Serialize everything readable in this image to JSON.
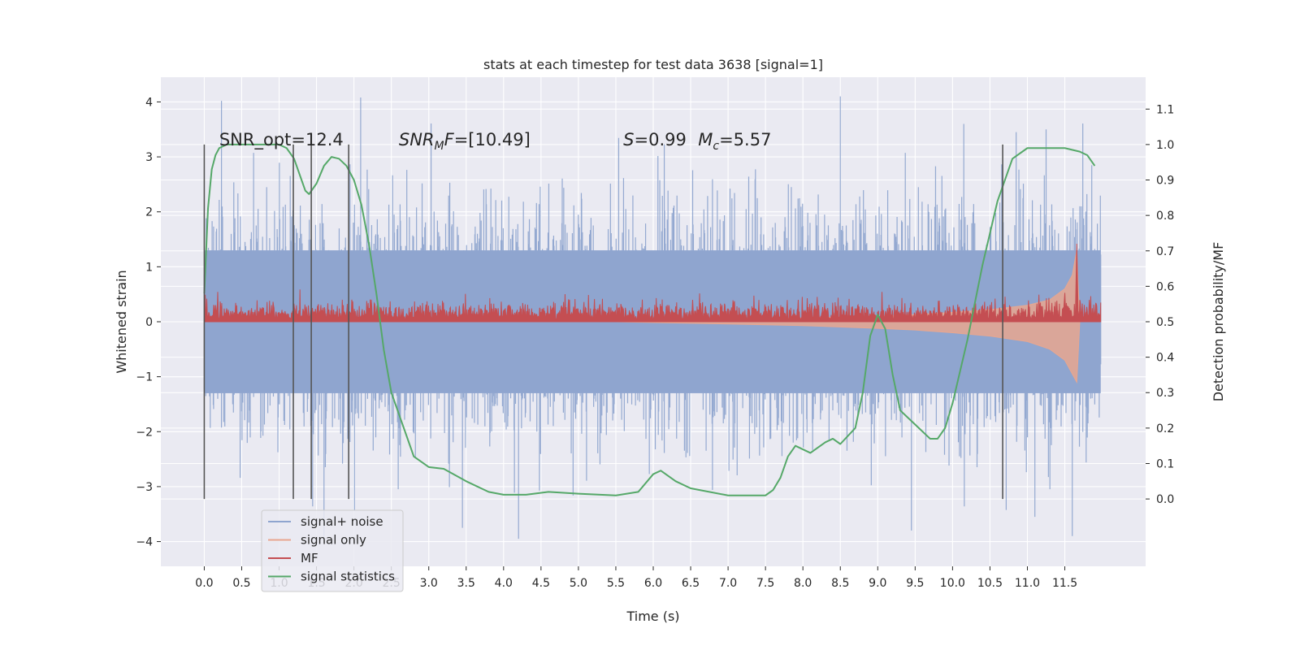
{
  "chart_data": {
    "type": "line",
    "title": "stats at each timestep for test data 3638 [signal=1]",
    "xlabel": "Time (s)",
    "ylabel_left": "Whitened strain",
    "ylabel_right": "Detection probability/MF",
    "xlim": [
      -0.58,
      12.58
    ],
    "ylim_left": [
      -4.45,
      4.45
    ],
    "ylim_right": [
      -0.19,
      1.19
    ],
    "x_ticks": [
      0.0,
      0.5,
      1.0,
      1.5,
      2.0,
      2.5,
      3.0,
      3.5,
      4.0,
      4.5,
      5.0,
      5.5,
      6.0,
      6.5,
      7.0,
      7.5,
      8.0,
      8.5,
      9.0,
      9.5,
      10.0,
      10.5,
      11.0,
      11.5
    ],
    "x_tick_labels": [
      "0.0",
      "0.5",
      "1.0",
      "1.5",
      "2.0",
      "2.5",
      "3.0",
      "3.5",
      "4.0",
      "4.5",
      "5.0",
      "5.5",
      "6.0",
      "6.5",
      "7.0",
      "7.5",
      "8.0",
      "8.5",
      "9.0",
      "9.5",
      "10.0",
      "10.5",
      "11.0",
      "11.5"
    ],
    "y_left_ticks": [
      -4,
      -3,
      -2,
      -1,
      0,
      1,
      2,
      3,
      4
    ],
    "y_left_tick_labels": [
      "−4",
      "−3",
      "−2",
      "−1",
      "0",
      "1",
      "2",
      "3",
      "4"
    ],
    "y_right_ticks": [
      0.0,
      0.1,
      0.2,
      0.3,
      0.4,
      0.5,
      0.6,
      0.7,
      0.8,
      0.9,
      1.0,
      1.1
    ],
    "y_right_tick_labels": [
      "0.0",
      "0.1",
      "0.2",
      "0.3",
      "0.4",
      "0.5",
      "0.6",
      "0.7",
      "0.8",
      "0.9",
      "1.0",
      "1.1"
    ],
    "grid": true,
    "legend_position": "lower-left",
    "series": [
      {
        "name": "signal+ noise",
        "axis": "left",
        "color": "#8fa5cf",
        "kind": "noise-band",
        "x_range": [
          0.0,
          11.98
        ],
        "typical_abs": 1.35,
        "peaks": [
          {
            "x": 0.23,
            "y": 4.02
          },
          {
            "x": 2.09,
            "y": 4.08
          },
          {
            "x": 8.5,
            "y": 4.1
          },
          {
            "x": 10.15,
            "y": 3.6
          },
          {
            "x": 10.85,
            "y": 3.45
          },
          {
            "x": 11.25,
            "y": 3.5
          },
          {
            "x": 3.45,
            "y": -3.75
          },
          {
            "x": 4.2,
            "y": -3.95
          },
          {
            "x": 9.45,
            "y": -3.8
          },
          {
            "x": 11.1,
            "y": -3.55
          },
          {
            "x": 11.6,
            "y": -3.9
          },
          {
            "x": 1.6,
            "y": -3.9
          }
        ]
      },
      {
        "name": "signal only",
        "axis": "left",
        "color": "#e8a68f",
        "kind": "chirp-envelope",
        "x": [
          5.5,
          7.0,
          8.0,
          9.0,
          9.5,
          10.0,
          10.5,
          11.0,
          11.3,
          11.5,
          11.6,
          11.66,
          11.7
        ],
        "upper": [
          0.0,
          0.04,
          0.07,
          0.1,
          0.13,
          0.17,
          0.22,
          0.3,
          0.4,
          0.6,
          0.85,
          1.3,
          0.0
        ],
        "lower": [
          0.0,
          -0.04,
          -0.07,
          -0.12,
          -0.15,
          -0.2,
          -0.26,
          -0.36,
          -0.5,
          -0.7,
          -0.95,
          -1.1,
          0.0
        ]
      },
      {
        "name": "MF",
        "axis": "right",
        "color": "#c44e52",
        "kind": "noise-band",
        "x_range": [
          0.0,
          11.98
        ],
        "base": 0.5,
        "typical": 0.53,
        "spike": {
          "x": 11.66,
          "y": 0.72
        }
      },
      {
        "name": "signal statistics",
        "axis": "right",
        "color": "#55a868",
        "kind": "line",
        "x": [
          0.0,
          0.05,
          0.1,
          0.15,
          0.2,
          0.3,
          0.5,
          0.8,
          1.0,
          1.1,
          1.2,
          1.3,
          1.35,
          1.4,
          1.5,
          1.6,
          1.7,
          1.8,
          1.9,
          2.0,
          2.1,
          2.2,
          2.3,
          2.4,
          2.5,
          2.6,
          2.8,
          3.0,
          3.2,
          3.5,
          3.8,
          4.0,
          4.3,
          4.6,
          5.0,
          5.5,
          5.8,
          6.0,
          6.1,
          6.3,
          6.5,
          7.0,
          7.3,
          7.5,
          7.6,
          7.7,
          7.8,
          7.9,
          8.1,
          8.3,
          8.4,
          8.5,
          8.7,
          8.8,
          8.9,
          9.0,
          9.1,
          9.2,
          9.3,
          9.5,
          9.7,
          9.8,
          9.9,
          10.0,
          10.2,
          10.4,
          10.6,
          10.8,
          11.0,
          11.2,
          11.5,
          11.7,
          11.8,
          11.9
        ],
        "y": [
          0.58,
          0.82,
          0.93,
          0.97,
          0.99,
          1.0,
          1.0,
          1.0,
          1.0,
          0.99,
          0.96,
          0.9,
          0.87,
          0.86,
          0.89,
          0.94,
          0.965,
          0.96,
          0.94,
          0.9,
          0.83,
          0.72,
          0.58,
          0.42,
          0.3,
          0.24,
          0.12,
          0.09,
          0.085,
          0.05,
          0.02,
          0.012,
          0.012,
          0.02,
          0.015,
          0.01,
          0.02,
          0.07,
          0.08,
          0.05,
          0.03,
          0.01,
          0.01,
          0.01,
          0.025,
          0.06,
          0.12,
          0.15,
          0.13,
          0.16,
          0.17,
          0.155,
          0.2,
          0.3,
          0.46,
          0.52,
          0.48,
          0.35,
          0.25,
          0.21,
          0.17,
          0.17,
          0.2,
          0.27,
          0.45,
          0.66,
          0.84,
          0.96,
          0.99,
          0.99,
          0.99,
          0.98,
          0.97,
          0.94
        ]
      }
    ],
    "vertical_markers_x": [
      0.0,
      1.19,
      1.43,
      1.93,
      10.67
    ],
    "annotations": [
      {
        "type": "plain",
        "x": 0.2,
        "y": 3.3,
        "text": "SNR_opt=12.4"
      },
      {
        "type": "snr-mf",
        "x": 2.6,
        "y": 3.3,
        "main": "SNR",
        "sub": "M",
        "after": "F=[10.49]"
      },
      {
        "type": "plain-italic-first",
        "x": 5.6,
        "y": 3.3,
        "italic": "S",
        "after": "=0.99"
      },
      {
        "type": "mc",
        "x": 6.6,
        "y": 3.3,
        "main": "M",
        "sub": "c",
        "after": "=5.57"
      }
    ]
  }
}
